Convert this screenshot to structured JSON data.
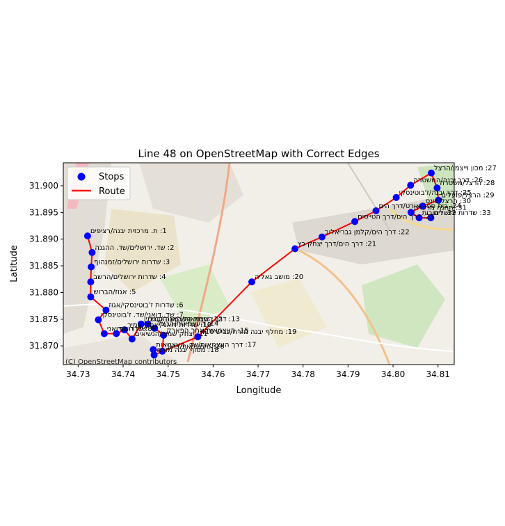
{
  "chart_data": {
    "type": "line",
    "title": "Line 48 on OpenStreetMap with Correct Edges",
    "xlabel": "Longitude",
    "ylabel": "Latitude",
    "xlim": [
      34.7267,
      34.8136
    ],
    "ylim": [
      31.8665,
      31.9043
    ],
    "x_ticks": [
      "34.73",
      "34.74",
      "34.75",
      "34.76",
      "34.77",
      "34.78",
      "34.79",
      "34.80",
      "34.81"
    ],
    "x_tick_values": [
      34.73,
      34.74,
      34.75,
      34.76,
      34.77,
      34.78,
      34.79,
      34.8,
      34.81
    ],
    "y_ticks": [
      "31.870",
      "31.875",
      "31.880",
      "31.885",
      "31.890",
      "31.895",
      "31.900"
    ],
    "y_tick_values": [
      31.87,
      31.875,
      31.88,
      31.885,
      31.89,
      31.895,
      31.9
    ],
    "attribution": "(C) OpenStreetMap contributors",
    "legend_position": "upper-left",
    "grid": false,
    "legend": [
      {
        "label": "Stops",
        "marker": "circle",
        "color": "#0000ff"
      },
      {
        "label": "Route",
        "marker": "line",
        "color": "#ff0000"
      }
    ],
    "colors": {
      "stops": "#0000ff",
      "route": "#ff0000"
    },
    "route": [
      [
        34.7321,
        31.8906
      ],
      [
        34.7331,
        31.8875
      ],
      [
        34.7329,
        31.8848
      ],
      [
        34.7328,
        31.882
      ],
      [
        34.7328,
        31.8792
      ],
      [
        34.7362,
        31.8767
      ],
      [
        34.7345,
        31.8749
      ],
      [
        34.7358,
        31.8723
      ],
      [
        34.7385,
        31.8723
      ],
      [
        34.7403,
        31.873
      ],
      [
        34.742,
        31.8713
      ],
      [
        34.744,
        31.8741
      ],
      [
        34.7455,
        31.8741
      ],
      [
        34.747,
        31.8733
      ],
      [
        34.749,
        31.872
      ],
      [
        34.7487,
        31.869
      ],
      [
        34.7467,
        31.8693
      ],
      [
        34.7469,
        31.8683
      ],
      [
        34.7566,
        31.8717
      ],
      [
        34.7686,
        31.882
      ],
      [
        34.7782,
        31.8882
      ],
      [
        34.7842,
        31.8904
      ],
      [
        34.7915,
        31.8933
      ],
      [
        34.7962,
        31.8953
      ],
      [
        34.8007,
        31.8978
      ],
      [
        34.8039,
        31.9001
      ],
      [
        34.8085,
        31.9024
      ],
      [
        34.8098,
        31.8996
      ],
      [
        34.8101,
        31.8973
      ],
      [
        34.8066,
        31.8962
      ],
      [
        34.804,
        31.895
      ],
      [
        34.8058,
        31.894
      ],
      [
        34.8084,
        31.894
      ]
    ],
    "stops": [
      {
        "label": "1: ת. מרכזית יבנה/רציפים",
        "lon": 34.7321,
        "lat": 31.8906
      },
      {
        "label": "2: שד. ירושלים/שד. ההגנה",
        "lon": 34.7331,
        "lat": 31.8875
      },
      {
        "label": "3: שדרות ירושלים/זמנהוף",
        "lon": 34.7329,
        "lat": 31.8848
      },
      {
        "label": "4: שדרות ירושלים/הרשב",
        "lon": 34.7328,
        "lat": 31.882
      },
      {
        "label": "5: אגוז/הברוש",
        "lon": 34.7328,
        "lat": 31.8792
      },
      {
        "label": "6: שדרות ז'בוטינסקי/אגוז",
        "lon": 34.7362,
        "lat": 31.8767
      },
      {
        "label": "7: שד. דואני/שד. ז'בוטינסקי",
        "lon": 34.7345,
        "lat": 31.8749
      },
      {
        "label": "8: שדרות דואני",
        "lon": 34.7358,
        "lat": 31.8723
      },
      {
        "label": "9: שד. דואני",
        "lon": 34.7385,
        "lat": 31.8723
      },
      {
        "label": "10: שדרות דואני/יצחק שמיר",
        "lon": 34.7403,
        "lat": 31.873
      },
      {
        "label": "11: יצחק שמיר/הנשיאים",
        "lon": 34.742,
        "lat": 31.8713
      },
      {
        "label": "12: צומת העצמאות/בנימין",
        "lon": 34.744,
        "lat": 31.8741
      },
      {
        "label": "13: דרך העצמאות/האנה סנש",
        "lon": 34.7455,
        "lat": 31.8741
      },
      {
        "label": "14: העצמאות/הרצל",
        "lon": 34.747,
        "lat": 31.8733
      },
      {
        "label": "15: העצמאות/אחר הפארק",
        "lon": 34.749,
        "lat": 31.872
      },
      {
        "label": "16: העצמאות/דואני",
        "lon": 34.7487,
        "lat": 31.869
      },
      {
        "label": "17: דרך העצמאות/שד. העצמאות",
        "lon": 34.7467,
        "lat": 31.8693
      },
      {
        "label": "18: מסוף יבנה מזרח",
        "lon": 34.7469,
        "lat": 31.8683
      },
      {
        "label": "19: מחלף יבנה מזרח/כביש 410",
        "lon": 34.7566,
        "lat": 31.8717
      },
      {
        "label": "20: מושב גאליה",
        "lon": 34.7686,
        "lat": 31.882
      },
      {
        "label": "21: דרך הים/דרך יצחק כץ",
        "lon": 34.7782,
        "lat": 31.8882
      },
      {
        "label": "22: דרך הים/קלמן גבריאלוב",
        "lon": 34.7842,
        "lat": 31.8904
      },
      {
        "label": "23: דרך הים/דרך הטייסים",
        "lon": 34.7915,
        "lat": 31.8933
      },
      {
        "label": "24: בית ספר אורט/דרך הים",
        "lon": 34.7962,
        "lat": 31.8953
      },
      {
        "label": "25: דרך יבנה/ז'בוטינסקי",
        "lon": 34.8007,
        "lat": 31.8978
      },
      {
        "label": "26: דרך יבנה/המשטרה",
        "lon": 34.8039,
        "lat": 31.9001
      },
      {
        "label": "27: מכון וייצמן/הרצל",
        "lon": 34.8085,
        "lat": 31.9024
      },
      {
        "label": "28: הרצל/משטרה",
        "lon": 34.8098,
        "lat": 31.8996
      },
      {
        "label": "29: הרצל/פועלים",
        "lon": 34.8101,
        "lat": 31.8973
      },
      {
        "label": "30: הרצל/פינס",
        "lon": 34.8066,
        "lat": 31.8962
      },
      {
        "label": "31: תחנה מרכזית",
        "lon": 34.804,
        "lat": 31.895
      },
      {
        "label": "32: רחובות",
        "lon": 34.8058,
        "lat": 31.894
      },
      {
        "label": "33: שדרות ירושלים",
        "lon": 34.8084,
        "lat": 31.894
      }
    ]
  }
}
